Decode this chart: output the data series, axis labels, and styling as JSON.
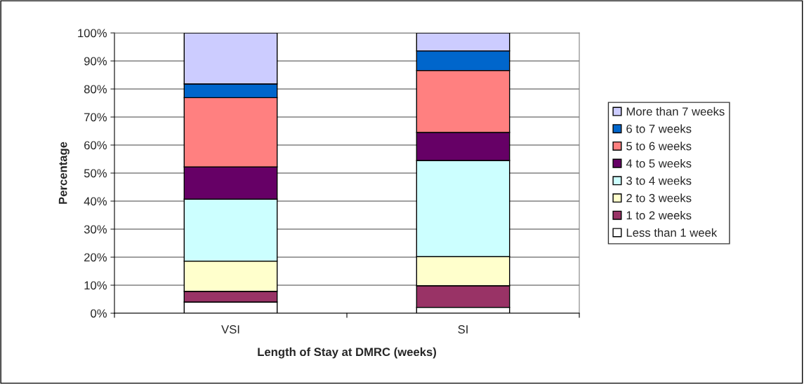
{
  "chart_data": {
    "type": "bar",
    "stacked": true,
    "xlabel": "Length of Stay at DMRC (weeks)",
    "ylabel": "Percentage",
    "categories": [
      "VSI",
      "SI"
    ],
    "series": [
      {
        "name": "Less than 1 week",
        "color": "#ffffff",
        "values": [
          4,
          2.1
        ]
      },
      {
        "name": "1 to 2 weeks",
        "color": "#993366",
        "values": [
          3.8,
          7.7
        ]
      },
      {
        "name": "2 to 3 weeks",
        "color": "#ffffcc",
        "values": [
          10.8,
          10.4
        ]
      },
      {
        "name": "3 to 4 weeks",
        "color": "#ccffff",
        "values": [
          22.1,
          34.3
        ]
      },
      {
        "name": "4 to 5 weeks",
        "color": "#660066",
        "values": [
          11.5,
          10
        ]
      },
      {
        "name": "5 to 6 weeks",
        "color": "#ff8080",
        "values": [
          24.7,
          22.1
        ]
      },
      {
        "name": "6 to 7 weeks",
        "color": "#0066cc",
        "values": [
          4.9,
          7
        ]
      },
      {
        "name": "More than 7 weeks",
        "color": "#ccccff",
        "values": [
          18.2,
          6.4
        ]
      }
    ],
    "ylim": [
      0,
      100
    ],
    "yticks": [
      {
        "value": 0,
        "label": "0%"
      },
      {
        "value": 10,
        "label": "10%"
      },
      {
        "value": 20,
        "label": "20%"
      },
      {
        "value": 30,
        "label": "30%"
      },
      {
        "value": 40,
        "label": "40%"
      },
      {
        "value": 50,
        "label": "50%"
      },
      {
        "value": 60,
        "label": "60%"
      },
      {
        "value": 70,
        "label": "70%"
      },
      {
        "value": 80,
        "label": "80%"
      },
      {
        "value": 90,
        "label": "90%"
      },
      {
        "value": 100,
        "label": "100%"
      }
    ],
    "grid": "y",
    "legend": "right"
  }
}
